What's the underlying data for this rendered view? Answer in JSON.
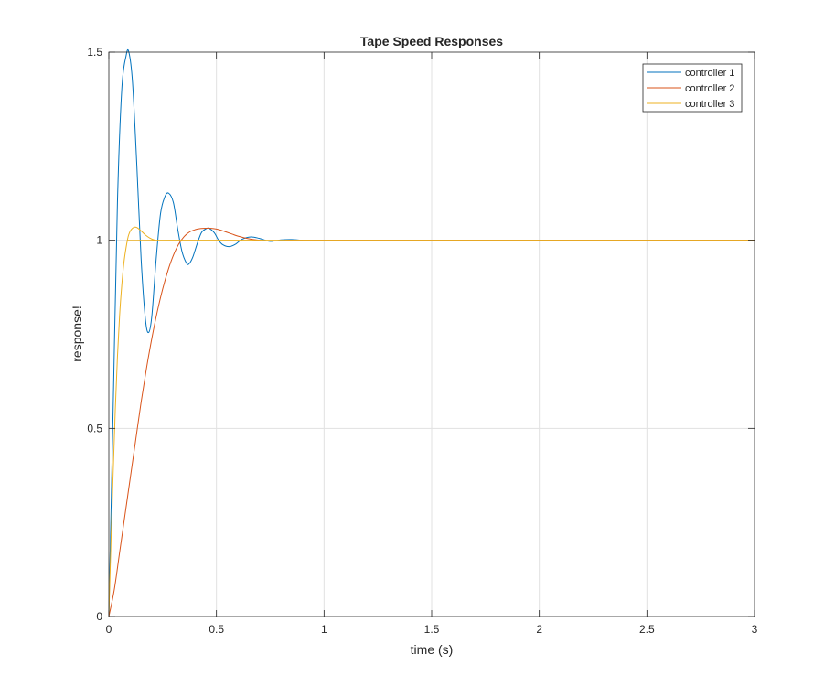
{
  "chart_data": {
    "type": "line",
    "title": "Tape Speed Responses",
    "xlabel": "time (s)",
    "ylabel": "response!",
    "xlim": [
      0,
      3
    ],
    "ylim": [
      0,
      1.5
    ],
    "x_ticks": [
      0,
      0.5,
      1,
      1.5,
      2,
      2.5,
      3
    ],
    "x_tick_labels": [
      "0",
      "0.5",
      "1",
      "1.5",
      "2",
      "2.5",
      "3"
    ],
    "y_ticks": [
      0,
      0.5,
      1,
      1.5
    ],
    "y_tick_labels": [
      "0",
      "0.5",
      "1",
      "1.5"
    ],
    "grid": true,
    "legend_position": "top-right",
    "series": [
      {
        "name": "controller 1",
        "color": "#0072BD",
        "x": [
          0,
          0.02,
          0.04,
          0.06,
          0.08,
          0.093,
          0.11,
          0.13,
          0.15,
          0.17,
          0.185,
          0.2,
          0.22,
          0.24,
          0.26,
          0.278,
          0.3,
          0.32,
          0.34,
          0.36,
          0.372,
          0.39,
          0.41,
          0.43,
          0.45,
          0.465,
          0.49,
          0.51,
          0.53,
          0.56,
          0.59,
          0.62,
          0.66,
          0.7,
          0.75,
          0.8,
          0.85,
          0.9,
          1.0,
          3.0
        ],
        "y": [
          0,
          0.55,
          1.1,
          1.4,
          1.49,
          1.5,
          1.42,
          1.2,
          0.95,
          0.79,
          0.755,
          0.8,
          0.95,
          1.07,
          1.115,
          1.125,
          1.1,
          1.03,
          0.97,
          0.94,
          0.937,
          0.955,
          0.99,
          1.02,
          1.03,
          1.032,
          1.02,
          1.0,
          0.988,
          0.983,
          0.99,
          1.003,
          1.009,
          1.005,
          0.997,
          1.001,
          1.002,
          1.0,
          1.0,
          1.0
        ]
      },
      {
        "name": "controller 2",
        "color": "#D95319",
        "x": [
          0,
          0.025,
          0.05,
          0.075,
          0.1,
          0.125,
          0.15,
          0.175,
          0.2,
          0.225,
          0.25,
          0.275,
          0.3,
          0.325,
          0.35,
          0.375,
          0.4,
          0.425,
          0.45,
          0.47,
          0.5,
          0.525,
          0.55,
          0.575,
          0.6,
          0.65,
          0.7,
          0.75,
          0.8,
          0.85,
          0.9,
          1.0,
          3.0
        ],
        "y": [
          0,
          0.07,
          0.17,
          0.27,
          0.37,
          0.47,
          0.57,
          0.66,
          0.74,
          0.81,
          0.87,
          0.92,
          0.96,
          0.99,
          1.01,
          1.022,
          1.028,
          1.031,
          1.032,
          1.032,
          1.03,
          1.026,
          1.021,
          1.016,
          1.011,
          1.004,
          1.0,
          0.998,
          0.998,
          0.999,
          1.0,
          1.0,
          1.0
        ]
      },
      {
        "name": "controller 3",
        "color": "#EDB120",
        "x": [
          0,
          0.01,
          0.02,
          0.03,
          0.04,
          0.05,
          0.06,
          0.07,
          0.08,
          0.09,
          0.1,
          0.11,
          0.12,
          0.13,
          0.14,
          0.15,
          0.17,
          0.19,
          0.21,
          0.23,
          0.25,
          0.3,
          3.0
        ],
        "y": [
          0,
          0.2,
          0.38,
          0.55,
          0.69,
          0.8,
          0.88,
          0.94,
          0.98,
          1.01,
          1.025,
          1.032,
          1.035,
          1.034,
          1.03,
          1.025,
          1.014,
          1.006,
          1.001,
          0.999,
          0.999,
          1.0,
          1.0
        ]
      }
    ]
  }
}
